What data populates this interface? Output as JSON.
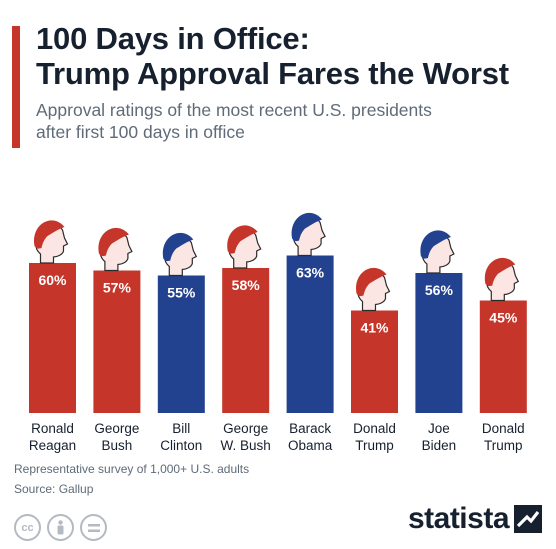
{
  "header": {
    "title_line1": "100 Days in Office:",
    "title_line2": "Trump Approval Fares the Worst",
    "subtitle_line1": "Approval ratings of the most recent U.S. presidents",
    "subtitle_line2": "after first 100 days in office"
  },
  "footer": {
    "note": "Representative survey of 1,000+ U.S. adults",
    "source": "Source: Gallup",
    "brand": "statista",
    "license_icons": [
      "cc-icon",
      "attribution-icon",
      "no-derivatives-icon"
    ]
  },
  "colors": {
    "republican": "#c5352a",
    "democrat": "#22428f",
    "accent": "#c5352a",
    "face": "#fbe6e3",
    "label_text": "#ffffff"
  },
  "chart_data": {
    "type": "bar",
    "title": "100 Days in Office: Trump Approval Fares the Worst",
    "subtitle": "Approval ratings of the most recent U.S. presidents after first 100 days in office",
    "categories": [
      "Ronald Reagan",
      "George Bush",
      "Bill Clinton",
      "George W. Bush",
      "Barack Obama",
      "Donald Trump",
      "Joe Biden",
      "Donald Trump"
    ],
    "category_lines": [
      [
        "Ronald",
        "Reagan"
      ],
      [
        "George",
        "Bush"
      ],
      [
        "Bill",
        "Clinton"
      ],
      [
        "George",
        "W. Bush"
      ],
      [
        "Barack",
        "Obama"
      ],
      [
        "Donald",
        "Trump"
      ],
      [
        "Joe",
        "Biden"
      ],
      [
        "Donald",
        "Trump"
      ]
    ],
    "values": [
      60,
      57,
      55,
      58,
      63,
      41,
      56,
      45
    ],
    "value_labels": [
      "60%",
      "57%",
      "55%",
      "58%",
      "63%",
      "41%",
      "56%",
      "45%"
    ],
    "party": [
      "R",
      "R",
      "D",
      "R",
      "D",
      "R",
      "D",
      "R"
    ],
    "unit": "%",
    "grid": false,
    "legend": "none"
  }
}
